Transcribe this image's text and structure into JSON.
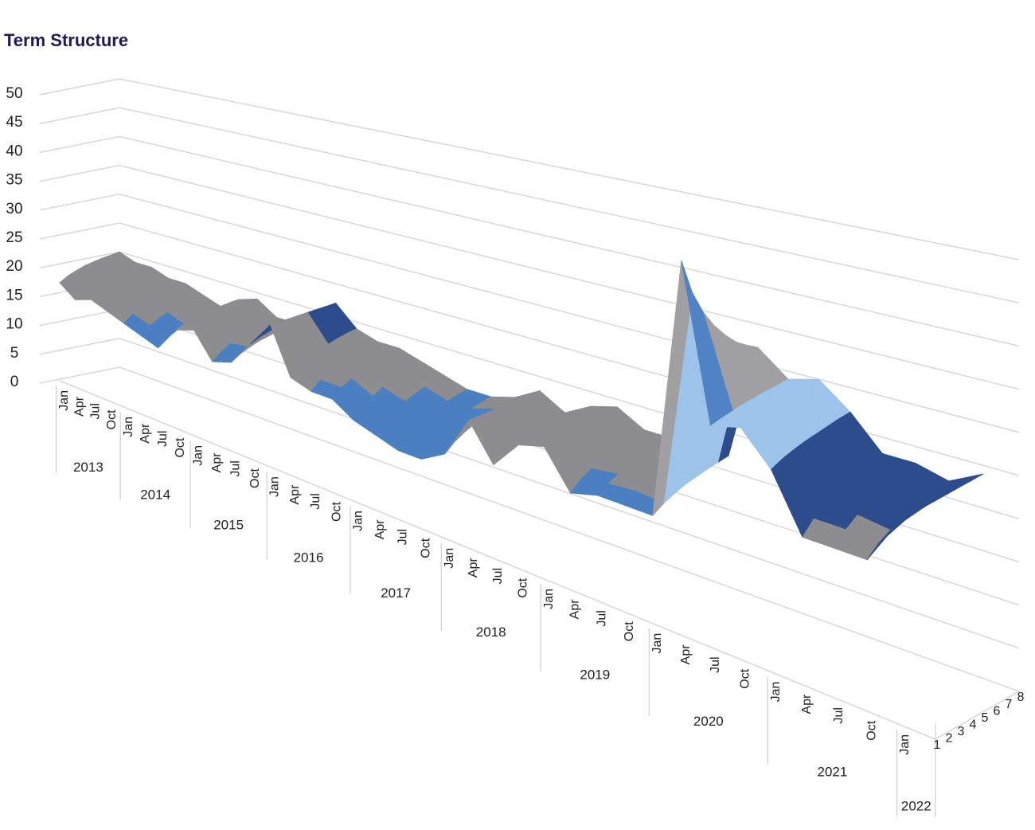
{
  "chart_data": {
    "type": "surface",
    "title": "Term Structure",
    "category_groups": [
      {
        "label": "2013",
        "categories": [
          "Jan",
          "Apr",
          "Jul",
          "Oct"
        ]
      },
      {
        "label": "2014",
        "categories": [
          "Jan",
          "Apr",
          "Jul",
          "Oct"
        ]
      },
      {
        "label": "2015",
        "categories": [
          "Jan",
          "Apr",
          "Jul",
          "Oct"
        ]
      },
      {
        "label": "2016",
        "categories": [
          "Jan",
          "Apr",
          "Jul",
          "Oct"
        ]
      },
      {
        "label": "2017",
        "categories": [
          "Jan",
          "Apr",
          "Jul",
          "Oct"
        ]
      },
      {
        "label": "2018",
        "categories": [
          "Jan",
          "Apr",
          "Jul",
          "Oct"
        ]
      },
      {
        "label": "2019",
        "categories": [
          "Jan",
          "Apr",
          "Jul",
          "Oct"
        ]
      },
      {
        "label": "2020",
        "categories": [
          "Jan",
          "Apr",
          "Jul",
          "Oct"
        ]
      },
      {
        "label": "2021",
        "categories": [
          "Jan",
          "Apr",
          "Jul",
          "Oct"
        ]
      },
      {
        "label": "2022",
        "categories": [
          "Jan"
        ]
      }
    ],
    "series": [
      {
        "name": "1",
        "values": [
          17,
          15,
          16,
          15,
          14,
          13,
          12,
          16,
          17,
          13,
          14,
          18,
          22,
          15,
          14,
          14,
          12,
          11,
          10,
          10,
          12,
          18,
          13,
          17,
          18,
          13,
          14,
          14,
          14,
          48,
          28,
          29,
          25,
          18,
          18,
          18,
          24
        ]
      },
      {
        "name": "2",
        "values": [
          17.9,
          16.2,
          16.9,
          15.9,
          15.2,
          14.2,
          13.2,
          16.6,
          17.6,
          14.2,
          14.9,
          18.6,
          22,
          16.2,
          15.2,
          15.2,
          13.5,
          12.5,
          11.5,
          11.5,
          13.2,
          18,
          13.9,
          17.3,
          18.3,
          14.2,
          14.9,
          15.2,
          14.9,
          43.2,
          28.3,
          29.3,
          25.6,
          19.5,
          19.5,
          19.2,
          24
        ]
      },
      {
        "name": "3",
        "values": [
          18.5,
          17,
          17.5,
          16.5,
          16,
          15,
          14,
          17,
          18,
          15,
          15.5,
          19,
          22,
          17,
          16,
          16,
          14.5,
          13.5,
          12.5,
          12.5,
          14,
          18,
          14.5,
          17.5,
          18.5,
          15,
          15.5,
          16,
          15.5,
          40,
          28.5,
          29.5,
          26,
          20.5,
          20.5,
          20,
          24
        ]
      },
      {
        "name": "4",
        "values": [
          19,
          17.6,
          18,
          17,
          16.6,
          15.6,
          14.6,
          17.3,
          18.3,
          15.6,
          16,
          19.3,
          22,
          17.6,
          16.6,
          16.6,
          15.3,
          14.3,
          13.3,
          13.3,
          14.6,
          18,
          15,
          17.7,
          18.7,
          15.6,
          16,
          16.6,
          16,
          37.6,
          28.7,
          29.7,
          26.3,
          21.3,
          21.3,
          20.6,
          24
        ]
      },
      {
        "name": "5",
        "values": [
          19.3,
          18.1,
          18.3,
          17.3,
          17.1,
          16.1,
          15.1,
          17.5,
          18.5,
          16.1,
          16.3,
          19.5,
          22,
          18.1,
          17.1,
          17.1,
          15.9,
          14.9,
          13.9,
          13.9,
          15.1,
          18,
          15.3,
          17.8,
          18.8,
          16.1,
          16.3,
          17.1,
          16.3,
          35.7,
          28.8,
          29.8,
          26.5,
          21.9,
          21.9,
          21.1,
          24
        ]
      },
      {
        "name": "6",
        "values": [
          19.6,
          18.5,
          18.6,
          17.6,
          17.5,
          16.5,
          15.5,
          17.7,
          18.7,
          16.5,
          16.6,
          19.7,
          22,
          18.5,
          17.5,
          17.5,
          16.4,
          15.4,
          14.4,
          14.4,
          15.5,
          18,
          15.6,
          17.9,
          18.9,
          16.5,
          16.6,
          17.5,
          16.6,
          34.1,
          28.9,
          29.9,
          26.7,
          22.4,
          22.4,
          21.5,
          24
        ]
      },
      {
        "name": "7",
        "values": [
          19.8,
          18.8,
          18.8,
          17.8,
          17.8,
          16.8,
          15.8,
          17.9,
          18.9,
          16.8,
          16.8,
          19.9,
          22,
          18.8,
          17.8,
          17.8,
          16.7,
          15.7,
          14.7,
          14.7,
          15.8,
          18,
          15.8,
          17.9,
          18.9,
          16.8,
          16.8,
          17.8,
          16.8,
          33,
          28.9,
          29.9,
          26.9,
          22.7,
          22.7,
          21.8,
          24
        ]
      },
      {
        "name": "8",
        "values": [
          20,
          19,
          19,
          18,
          18,
          17,
          16,
          18,
          19,
          17,
          17,
          20,
          22,
          19,
          18,
          18,
          17,
          16,
          15,
          15,
          16,
          18,
          16,
          18,
          19,
          17,
          17,
          18,
          17,
          32,
          29,
          30,
          27,
          23,
          23,
          22,
          24
        ]
      }
    ],
    "ylim": [
      0,
      50
    ],
    "yticks": [
      0,
      5,
      10,
      15,
      20,
      25,
      30,
      35,
      40,
      45,
      50
    ],
    "grid": true,
    "band_colors": [
      "#3a6fb0",
      "#5b8fd0",
      "#4a7fc2",
      "#8d8d8f",
      "#2c4c8c",
      "#9cc3ea",
      "#a0a0a2",
      "#4f83c6",
      "#1f3566",
      "#6f9fd8"
    ]
  }
}
